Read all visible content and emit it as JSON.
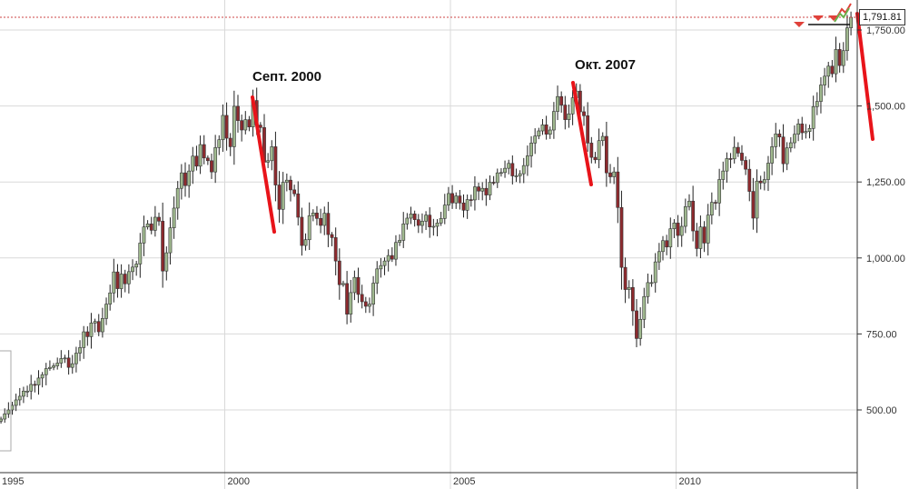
{
  "chart_data": {
    "type": "candlestick",
    "frequency": "monthly",
    "start": "1995-01",
    "closes": {
      "1995": [
        470,
        487,
        500,
        515,
        533,
        545,
        562,
        562,
        584,
        582,
        605,
        616
      ],
      "1996": [
        636,
        640,
        645,
        654,
        669,
        671,
        640,
        652,
        687,
        705,
        757,
        741
      ],
      "1997": [
        786,
        791,
        757,
        801,
        848,
        885,
        954,
        899,
        947,
        915,
        955,
        970
      ],
      "1998": [
        980,
        1049,
        1102,
        1112,
        1091,
        1134,
        1121,
        957,
        1017,
        1099,
        1164,
        1229
      ],
      "1999": [
        1280,
        1238,
        1286,
        1335,
        1302,
        1373,
        1329,
        1320,
        1283,
        1363,
        1389,
        1469
      ],
      "2000": [
        1394,
        1366,
        1499,
        1452,
        1421,
        1455,
        1431,
        1518,
        1437,
        1429,
        1315,
        1320
      ],
      "2001": [
        1366,
        1240,
        1160,
        1249,
        1256,
        1224,
        1211,
        1134,
        1041,
        1060,
        1139,
        1148
      ],
      "2002": [
        1130,
        1107,
        1147,
        1077,
        1067,
        990,
        912,
        916,
        815,
        886,
        936,
        880
      ],
      "2003": [
        856,
        841,
        848,
        917,
        964,
        975,
        990,
        1008,
        996,
        1051,
        1058,
        1112
      ],
      "2004": [
        1131,
        1145,
        1126,
        1107,
        1121,
        1141,
        1102,
        1104,
        1115,
        1130,
        1174,
        1212
      ],
      "2005": [
        1181,
        1204,
        1181,
        1157,
        1192,
        1191,
        1234,
        1220,
        1229,
        1207,
        1249,
        1248
      ],
      "2006": [
        1280,
        1281,
        1295,
        1311,
        1270,
        1270,
        1277,
        1304,
        1336,
        1378,
        1401,
        1418
      ],
      "2007": [
        1438,
        1407,
        1421,
        1482,
        1531,
        1503,
        1455,
        1474,
        1527,
        1549,
        1481,
        1468
      ],
      "2008": [
        1378,
        1331,
        1323,
        1386,
        1400,
        1280,
        1267,
        1283,
        1166,
        969,
        896,
        903
      ],
      "2009": [
        826,
        735,
        798,
        873,
        919,
        919,
        987,
        1021,
        1057,
        1036,
        1096,
        1115
      ],
      "2010": [
        1074,
        1104,
        1169,
        1187,
        1089,
        1031,
        1102,
        1049,
        1141,
        1183,
        1181,
        1258
      ],
      "2011": [
        1286,
        1327,
        1326,
        1364,
        1345,
        1321,
        1292,
        1219,
        1131,
        1253,
        1247,
        1258
      ],
      "2012": [
        1312,
        1366,
        1408,
        1398,
        1310,
        1362,
        1379,
        1407,
        1441,
        1412,
        1416,
        1426
      ],
      "2013": [
        1498,
        1515,
        1569,
        1598,
        1631,
        1606,
        1686,
        1633,
        1682,
        1757,
        1791.81
      ]
    },
    "last_price_label": "1,791.81",
    "y_ticks": [
      500,
      750,
      1000,
      1250,
      1500,
      1750
    ],
    "y_tick_labels": [
      "500.00",
      "750.00",
      "1,000.00",
      "1,250.00",
      "1,500.00",
      "1,750.00"
    ],
    "x_tick_labels": [
      "1995",
      "2000",
      "2005",
      "2010"
    ],
    "x_ticks": [
      1995,
      2000,
      2005,
      2010
    ],
    "ylim": [
      280,
      1830
    ],
    "xlim": [
      1995.0,
      2013.9
    ],
    "grid": true,
    "colors": {
      "up": "#9fb88e",
      "down": "#8e2a2e",
      "trend": "#e8141a",
      "grid": "#d9d9d9"
    },
    "annotations": [
      {
        "text": "Септ. 2000",
        "date": "2000-09"
      },
      {
        "text": "Окт. 2007",
        "date": "2007-10"
      }
    ]
  }
}
